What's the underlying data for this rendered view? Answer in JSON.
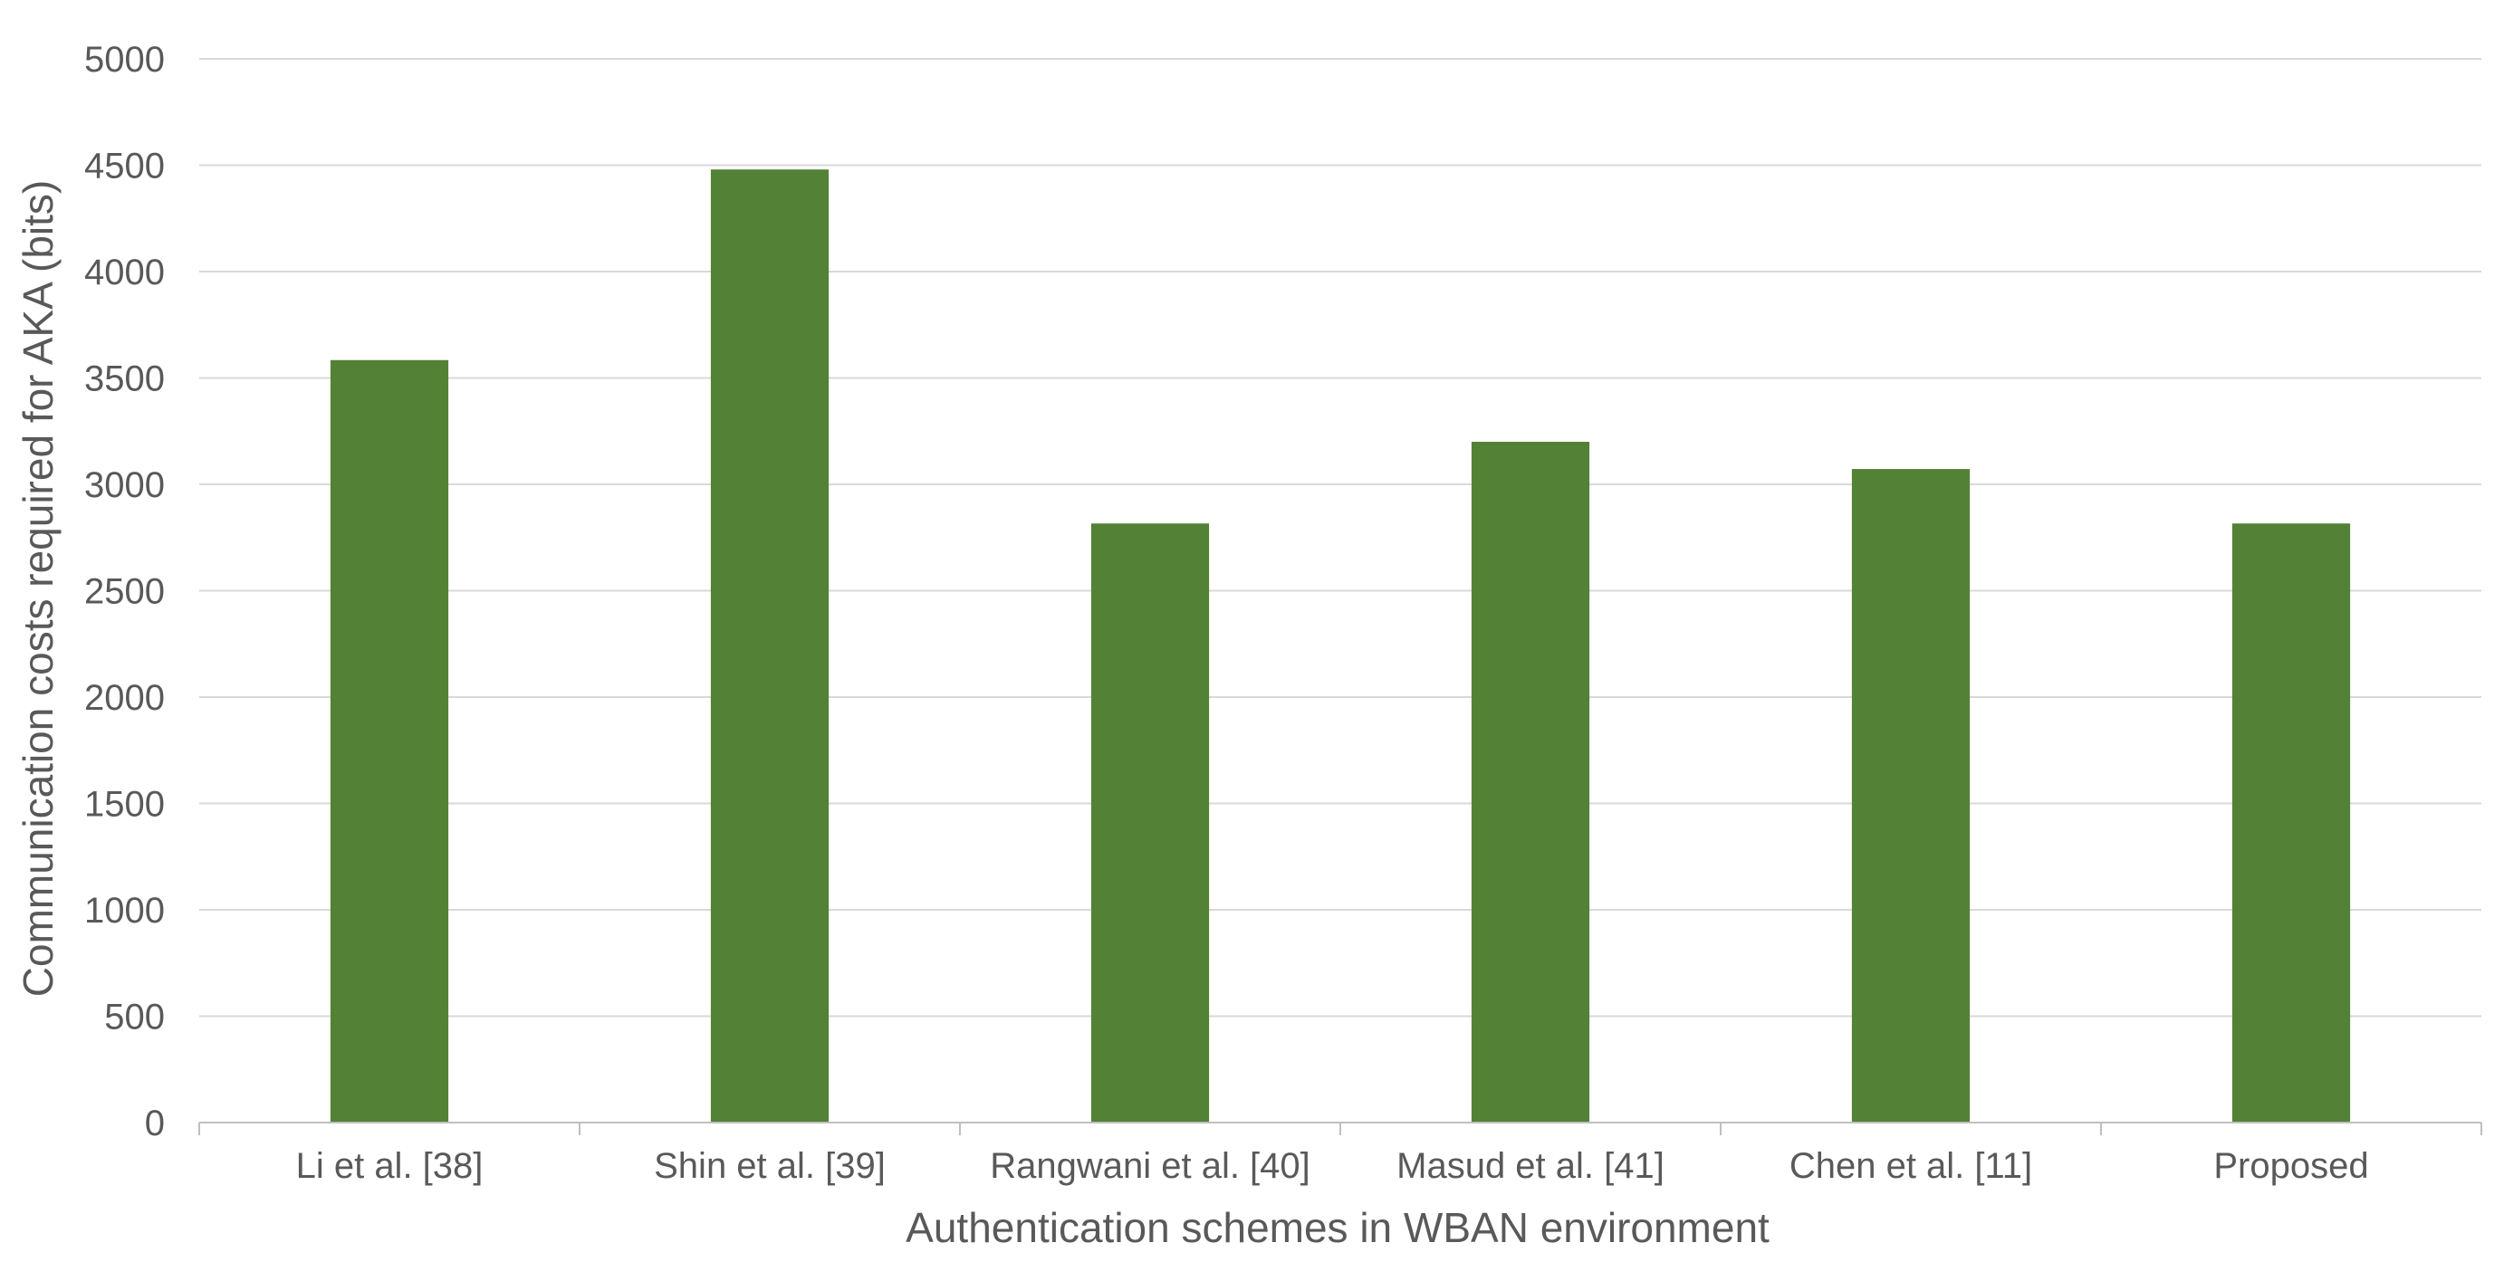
{
  "chart_data": {
    "type": "bar",
    "categories": [
      "Li et al. [38]",
      "Shin et al. [39]",
      "Rangwani et al. [40]",
      "Masud et al. [41]",
      "Chen et al. [11]",
      "Proposed"
    ],
    "values": [
      3584,
      4480,
      2816,
      3200,
      3072,
      2816
    ],
    "xlabel": "Authentication schemes in WBAN environment",
    "ylabel": "Communication costs required for AKA (bits)",
    "ylim": [
      0,
      5000
    ],
    "yticks": [
      0,
      500,
      1000,
      1500,
      2000,
      2500,
      3000,
      3500,
      4000,
      4500,
      5000
    ],
    "grid": true,
    "legend": "none",
    "bar_color": "#538135"
  }
}
